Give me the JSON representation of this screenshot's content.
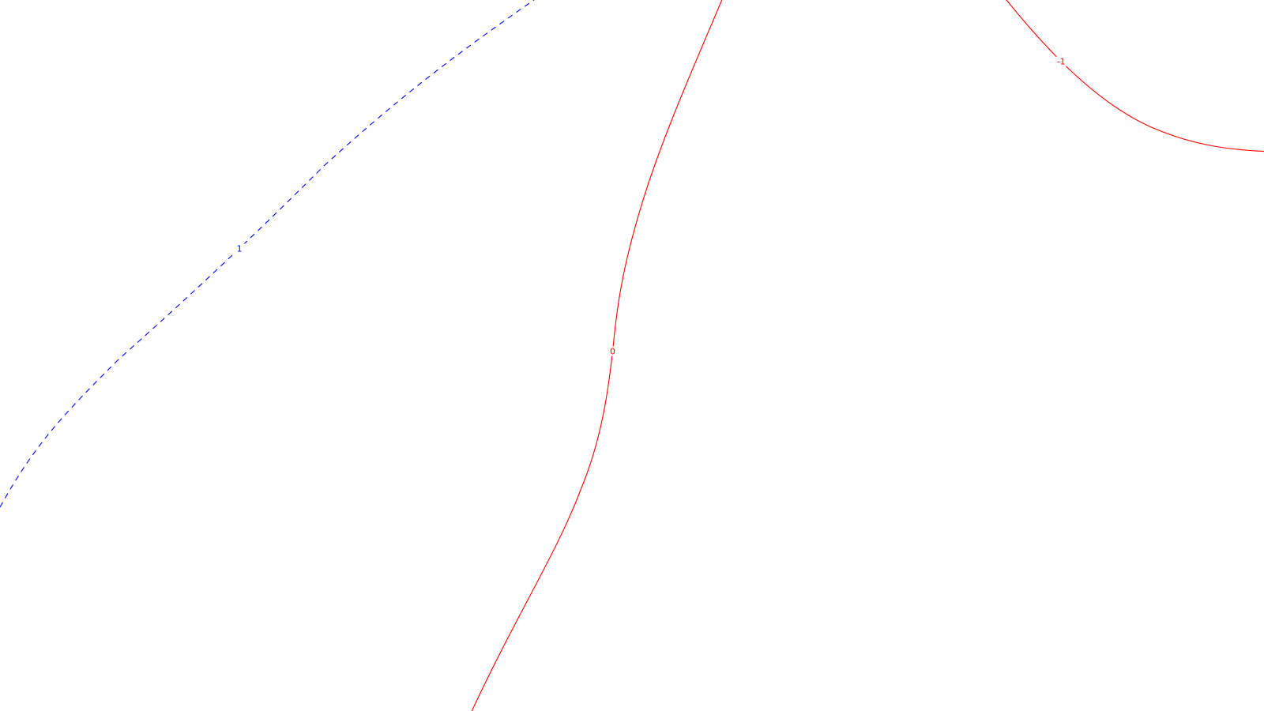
{
  "chart_data": {
    "type": "contour",
    "title": "",
    "xlabel": "",
    "ylabel": "",
    "grid": false,
    "legend": "none",
    "contours": [
      {
        "level_label": "1",
        "color": "#0000ff",
        "dashed": true,
        "label_at": 0.47
      },
      {
        "level_label": "0",
        "color": "#ff0000",
        "dashed": false,
        "label_at": 0.49
      },
      {
        "level_label": "-1",
        "color": "#ff0000",
        "dashed": false,
        "label_at": 0.27
      }
    ]
  }
}
